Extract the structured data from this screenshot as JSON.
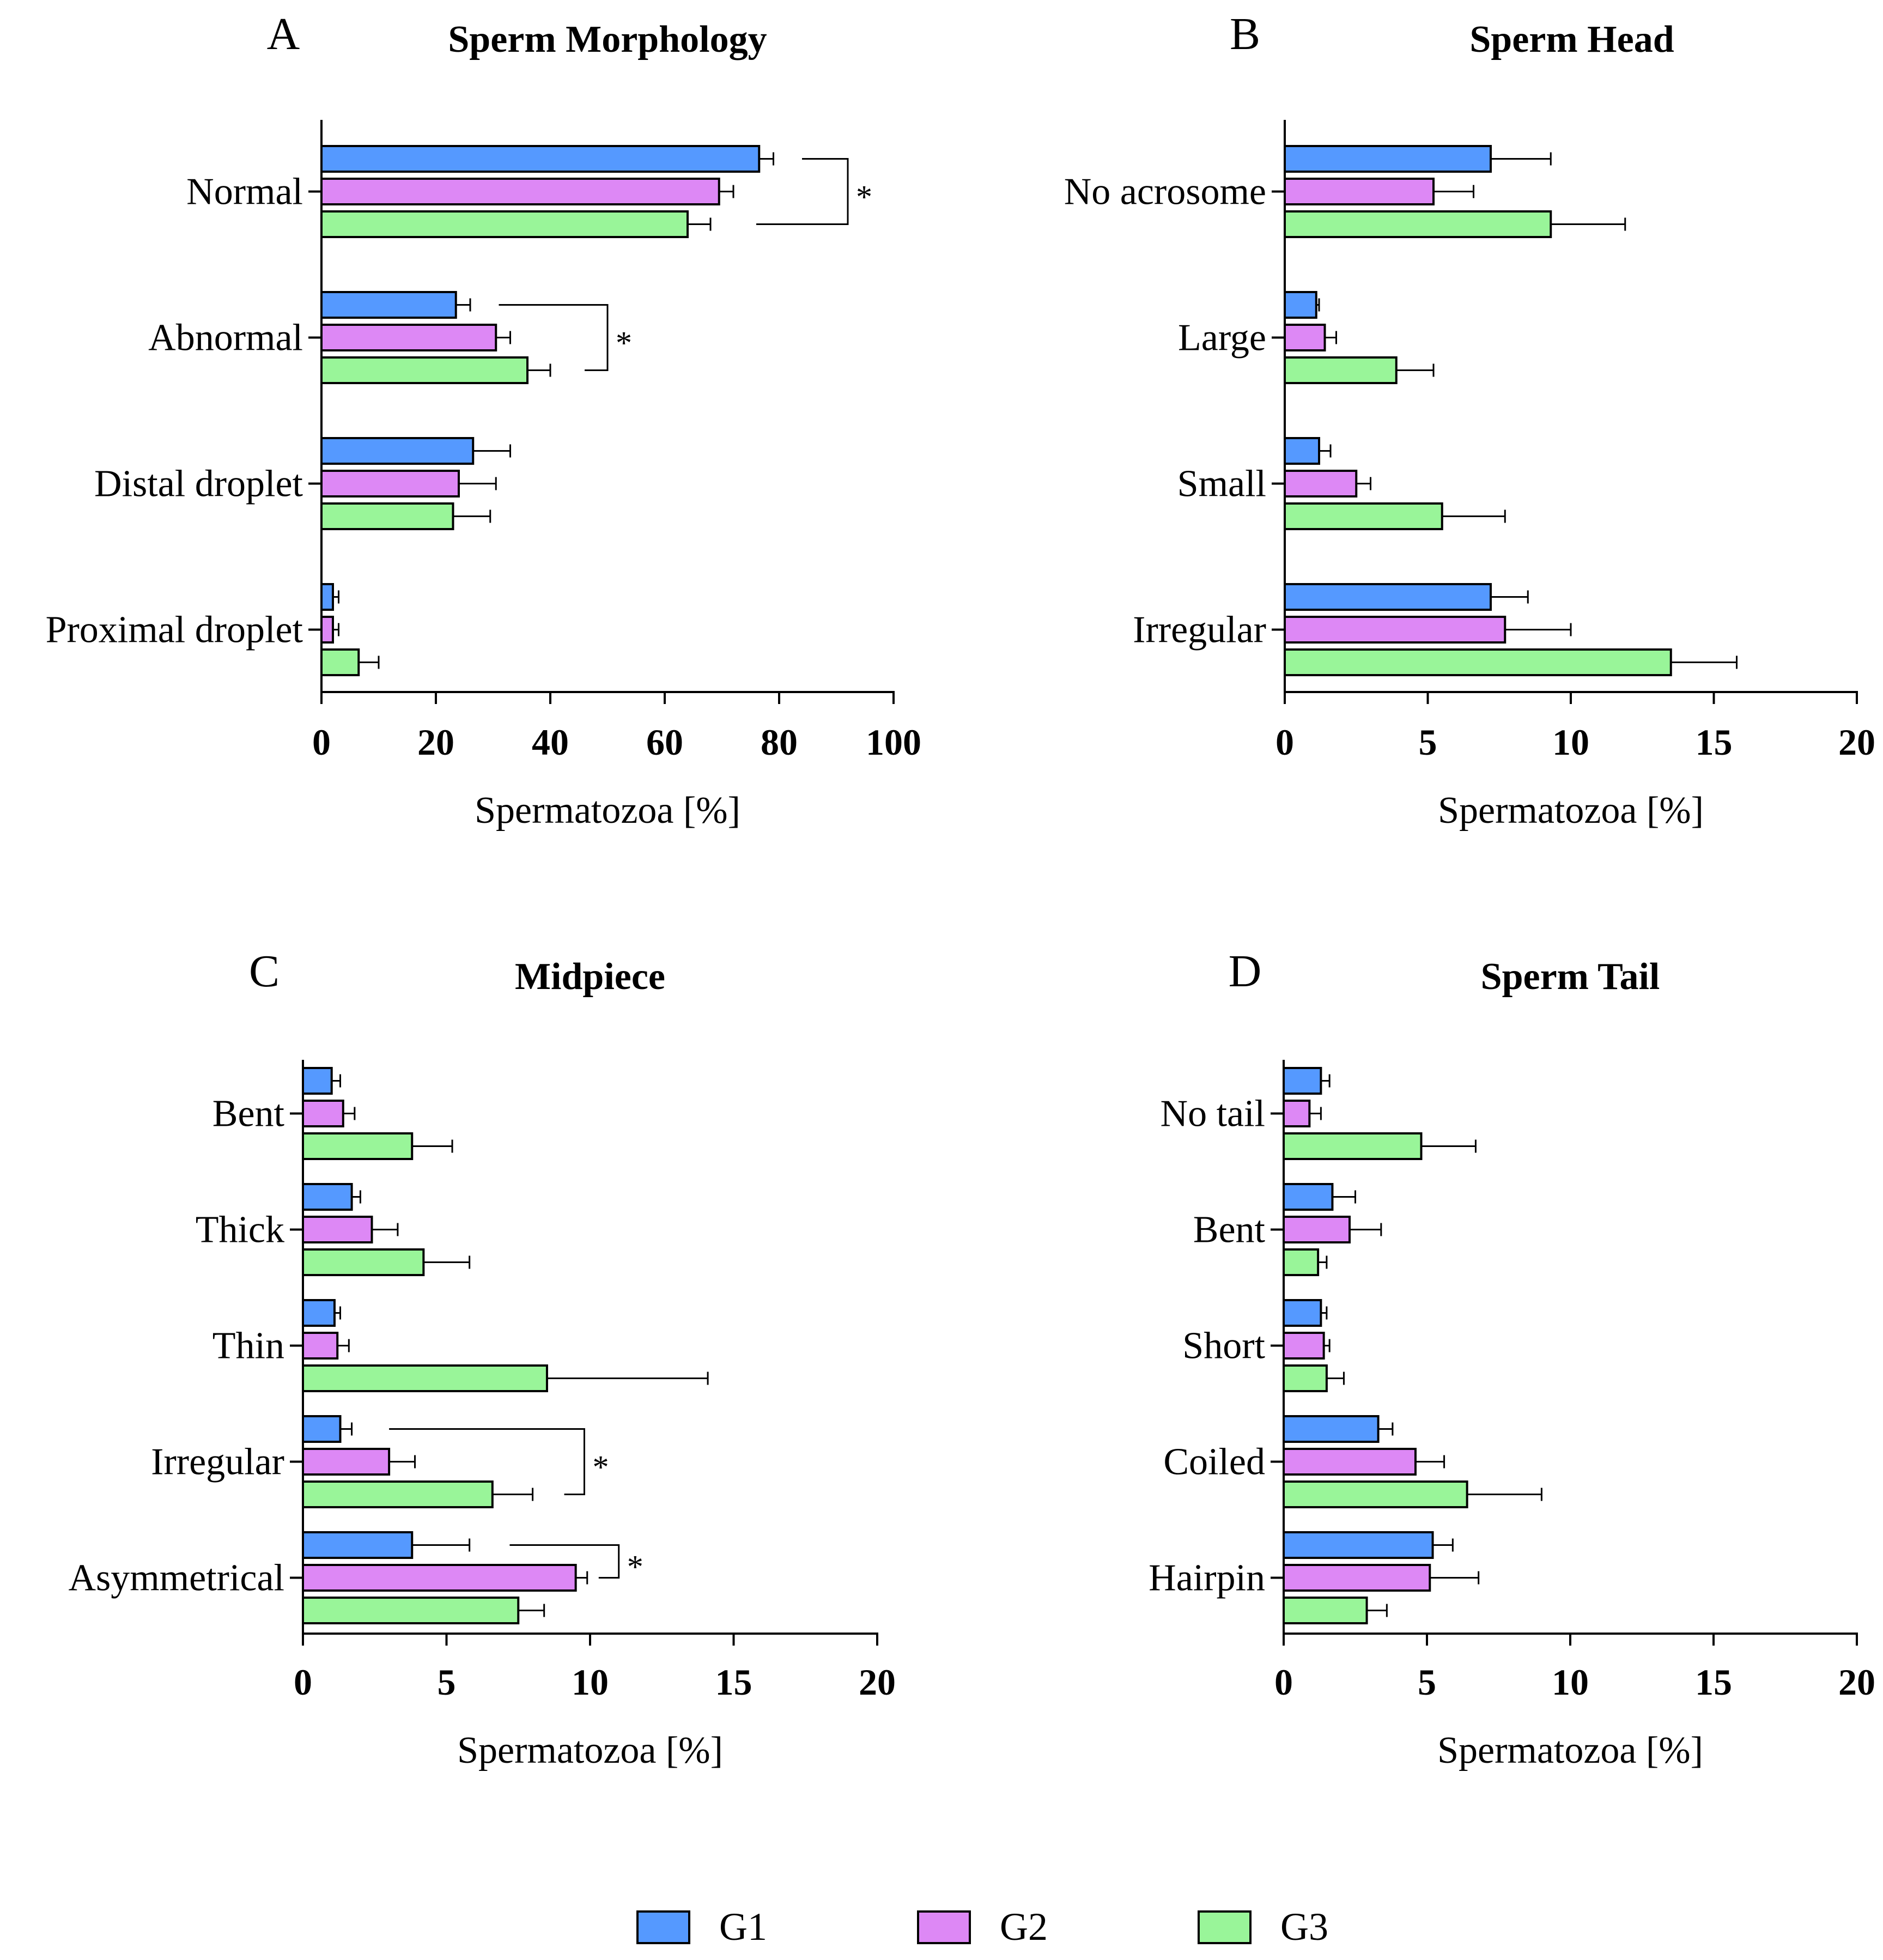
{
  "chart_data": [
    {
      "type": "bar",
      "orientation": "horizontal",
      "panel": "A",
      "title": "Sperm Morphology",
      "xlabel": "Spermatozoa [%]",
      "xlim": [
        0,
        100
      ],
      "ticks": [
        0,
        20,
        40,
        60,
        80,
        100
      ],
      "categories": [
        "Normal",
        "Abnormal",
        "Distal droplet",
        "Proximal droplet"
      ],
      "series": [
        {
          "name": "G1",
          "values": [
            76.5,
            23.5,
            26.5,
            2
          ],
          "errors": [
            2.5,
            2.5,
            6.5,
            1
          ]
        },
        {
          "name": "G2",
          "values": [
            69.5,
            30.5,
            24,
            2
          ],
          "errors": [
            2.5,
            2.5,
            6.5,
            1
          ]
        },
        {
          "name": "G3",
          "values": [
            64,
            36,
            23,
            6.5
          ],
          "errors": [
            4,
            4,
            6.5,
            3.5
          ]
        }
      ],
      "significance": [
        {
          "category": "Normal",
          "from": "G1",
          "to": "G3",
          "label": "*",
          "tip_values": [
            84,
            76
          ],
          "bracket_x": 92
        },
        {
          "category": "Abnormal",
          "from": "G1",
          "to": "G3",
          "label": "*",
          "tip_values": [
            31,
            46
          ],
          "bracket_x": 50
        }
      ]
    },
    {
      "type": "bar",
      "orientation": "horizontal",
      "panel": "B",
      "title": "Sperm Head",
      "xlabel": "Spermatozoa [%]",
      "xlim": [
        0,
        20
      ],
      "ticks": [
        0,
        5,
        10,
        15,
        20
      ],
      "categories": [
        "No acrosome",
        "Large",
        "Small",
        "Irregular"
      ],
      "series": [
        {
          "name": "G1",
          "values": [
            7.2,
            1.1,
            1.2,
            7.2
          ],
          "errors": [
            2.1,
            0.1,
            0.4,
            1.3
          ]
        },
        {
          "name": "G2",
          "values": [
            5.2,
            1.4,
            2.5,
            7.7
          ],
          "errors": [
            1.4,
            0.4,
            0.5,
            2.3
          ]
        },
        {
          "name": "G3",
          "values": [
            9.3,
            3.9,
            5.5,
            13.5
          ],
          "errors": [
            2.6,
            1.3,
            2.2,
            2.3
          ]
        }
      ],
      "significance": []
    },
    {
      "type": "bar",
      "orientation": "horizontal",
      "panel": "C",
      "title": "Midpiece",
      "xlabel": "Spermatozoa [%]",
      "xlim": [
        0,
        20
      ],
      "ticks": [
        0,
        5,
        10,
        15,
        20
      ],
      "categories": [
        "Bent",
        "Thick",
        "Thin",
        "Irregular",
        "Asymmetrical"
      ],
      "series": [
        {
          "name": "G1",
          "values": [
            1,
            1.7,
            1.1,
            1.3,
            3.8
          ],
          "errors": [
            0.3,
            0.3,
            0.2,
            0.4,
            2.0
          ]
        },
        {
          "name": "G2",
          "values": [
            1.4,
            2.4,
            1.2,
            3.0,
            9.5
          ],
          "errors": [
            0.4,
            0.9,
            0.4,
            0.9,
            0.4
          ]
        },
        {
          "name": "G3",
          "values": [
            3.8,
            4.2,
            8.5,
            6.6,
            7.5
          ],
          "errors": [
            1.4,
            1.6,
            5.6,
            1.4,
            0.9
          ]
        }
      ],
      "significance": [
        {
          "category": "Irregular",
          "from": "G1",
          "to": "G3",
          "label": "*",
          "tip_values": [
            3.0,
            9.1
          ],
          "bracket_x": 9.8
        },
        {
          "category": "Asymmetrical",
          "from": "G1",
          "to": "G2",
          "label": "*",
          "tip_values": [
            7.2,
            10.3
          ],
          "bracket_x": 11.0
        }
      ]
    },
    {
      "type": "bar",
      "orientation": "horizontal",
      "panel": "D",
      "title": "Sperm Tail",
      "xlabel": "Spermatozoa [%]",
      "xlim": [
        0,
        20
      ],
      "ticks": [
        0,
        5,
        10,
        15,
        20
      ],
      "categories": [
        "No tail",
        "Bent",
        "Short",
        "Coiled",
        "Hairpin"
      ],
      "series": [
        {
          "name": "G1",
          "values": [
            1.3,
            1.7,
            1.3,
            3.3,
            5.2
          ],
          "errors": [
            0.3,
            0.8,
            0.2,
            0.5,
            0.7
          ]
        },
        {
          "name": "G2",
          "values": [
            0.9,
            2.3,
            1.4,
            4.6,
            5.1
          ],
          "errors": [
            0.4,
            1.1,
            0.2,
            1.0,
            1.7
          ]
        },
        {
          "name": "G3",
          "values": [
            4.8,
            1.2,
            1.5,
            6.4,
            2.9
          ],
          "errors": [
            1.9,
            0.3,
            0.6,
            2.6,
            0.7
          ]
        }
      ],
      "significance": []
    }
  ],
  "legend": [
    {
      "name": "G1",
      "color": "#5599ff"
    },
    {
      "name": "G2",
      "color": "#dd88f5"
    },
    {
      "name": "G3",
      "color": "#99f599"
    }
  ]
}
